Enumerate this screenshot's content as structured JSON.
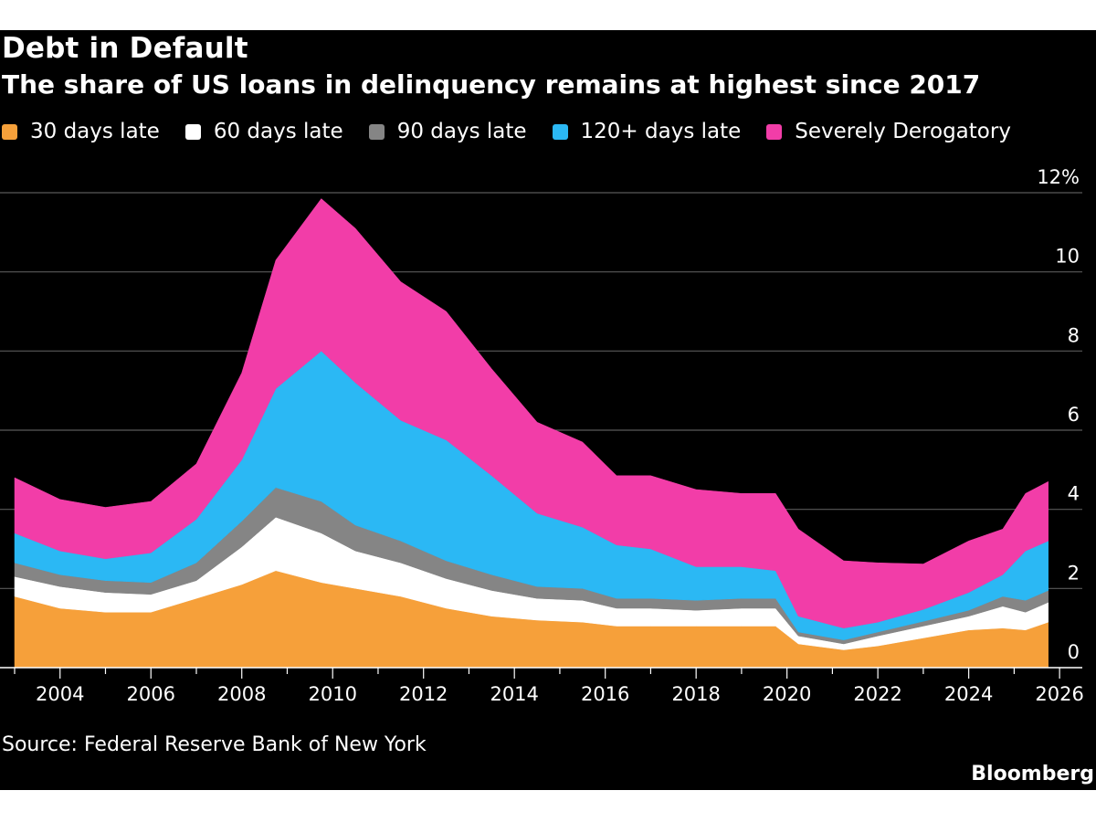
{
  "header": {
    "title": "Debt in Default",
    "subtitle": "The share of US loans in delinquency remains at highest since 2017"
  },
  "footer": {
    "source": "Source: Federal Reserve Bank of New York",
    "brand": "Bloomberg"
  },
  "chart_data": {
    "type": "area",
    "stacked": true,
    "title": "Debt in Default",
    "subtitle": "The share of US loans in delinquency remains at highest since 2017",
    "y_unit": "%",
    "ylim": [
      0,
      12
    ],
    "yticks": [
      0,
      2,
      4,
      6,
      8,
      10,
      12
    ],
    "ytick_labels": [
      "0",
      "2",
      "4",
      "6",
      "8",
      "10",
      "12%"
    ],
    "xlim": [
      2003,
      2026.5
    ],
    "xticks": [
      2004,
      2006,
      2008,
      2010,
      2012,
      2014,
      2016,
      2018,
      2020,
      2022,
      2024,
      2026
    ],
    "xtick_labels": [
      "2004",
      "2006",
      "2008",
      "2010",
      "2012",
      "2014",
      "2016",
      "2018",
      "2020",
      "2022",
      "2024",
      "2026"
    ],
    "grid": "horizontal",
    "legend_position": "top",
    "x": [
      2003.0,
      2004.0,
      2005.0,
      2006.0,
      2007.0,
      2008.0,
      2008.75,
      2009.75,
      2010.5,
      2011.5,
      2012.5,
      2013.5,
      2014.5,
      2015.5,
      2016.25,
      2017.0,
      2018.0,
      2019.0,
      2019.75,
      2020.25,
      2021.25,
      2022.0,
      2023.0,
      2024.0,
      2024.75,
      2025.25,
      2025.75
    ],
    "series": [
      {
        "name": "30 days late",
        "color": "#f6a03a",
        "values": [
          1.8,
          1.5,
          1.4,
          1.4,
          1.75,
          2.1,
          2.45,
          2.15,
          2.0,
          1.8,
          1.5,
          1.3,
          1.2,
          1.15,
          1.05,
          1.05,
          1.05,
          1.05,
          1.05,
          0.6,
          0.45,
          0.55,
          0.75,
          0.95,
          1.0,
          0.95,
          1.15
        ]
      },
      {
        "name": "60 days late",
        "color": "#ffffff",
        "values": [
          0.5,
          0.55,
          0.5,
          0.45,
          0.45,
          0.95,
          1.35,
          1.25,
          0.95,
          0.85,
          0.75,
          0.65,
          0.55,
          0.55,
          0.45,
          0.45,
          0.4,
          0.45,
          0.45,
          0.2,
          0.15,
          0.25,
          0.3,
          0.35,
          0.55,
          0.45,
          0.5
        ]
      },
      {
        "name": "90 days late",
        "color": "#858585",
        "values": [
          0.35,
          0.3,
          0.3,
          0.3,
          0.45,
          0.65,
          0.75,
          0.8,
          0.65,
          0.55,
          0.45,
          0.4,
          0.3,
          0.3,
          0.25,
          0.25,
          0.25,
          0.25,
          0.25,
          0.1,
          0.1,
          0.1,
          0.12,
          0.15,
          0.25,
          0.3,
          0.3
        ]
      },
      {
        "name": "120+ days late",
        "color": "#2bb8f4",
        "values": [
          0.75,
          0.6,
          0.55,
          0.75,
          1.1,
          1.55,
          2.5,
          3.8,
          3.6,
          3.05,
          3.05,
          2.5,
          1.85,
          1.55,
          1.35,
          1.25,
          0.85,
          0.8,
          0.7,
          0.4,
          0.3,
          0.25,
          0.3,
          0.45,
          0.55,
          1.25,
          1.25
        ]
      },
      {
        "name": "Severely Derogatory",
        "color": "#f23da8",
        "values": [
          1.4,
          1.3,
          1.3,
          1.3,
          1.4,
          2.2,
          3.25,
          3.85,
          3.9,
          3.5,
          3.25,
          2.7,
          2.3,
          2.15,
          1.75,
          1.85,
          1.95,
          1.85,
          1.95,
          2.2,
          1.7,
          1.5,
          1.15,
          1.3,
          1.15,
          1.45,
          1.5
        ]
      }
    ]
  }
}
